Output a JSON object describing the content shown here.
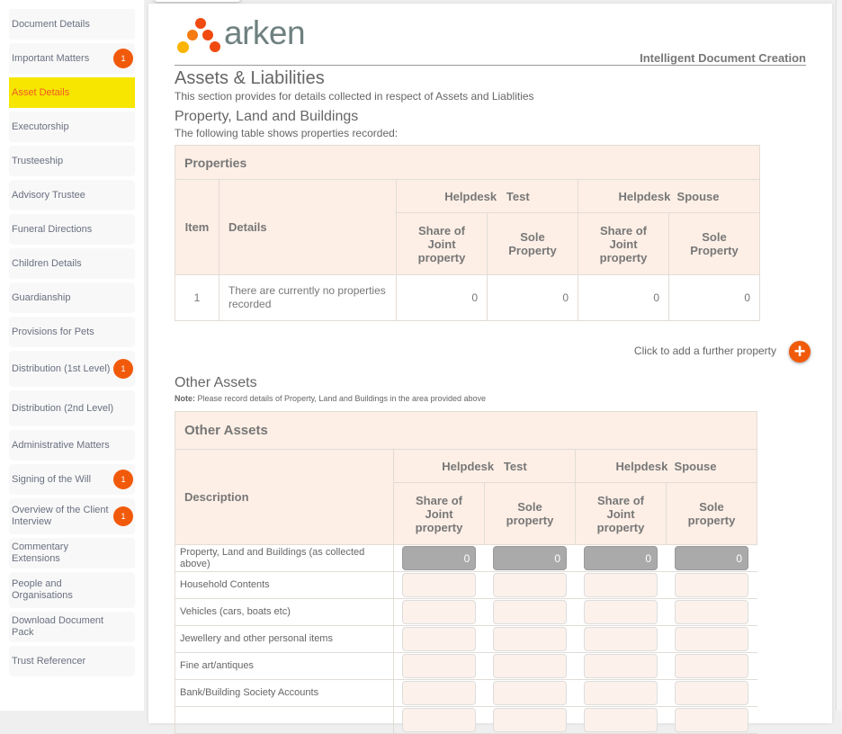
{
  "sidebar": {
    "items": [
      {
        "label": "Document Details"
      },
      {
        "label": "Important Matters",
        "badge": "1"
      },
      {
        "label": "Asset Details",
        "active": true
      },
      {
        "label": "Executorship"
      },
      {
        "label": "Trusteeship"
      },
      {
        "label": "Advisory Trustee"
      },
      {
        "label": "Funeral Directions"
      },
      {
        "label": "Children Details"
      },
      {
        "label": "Guardianship"
      },
      {
        "label": "Provisions for Pets"
      },
      {
        "label": "Distribution (1st Level)",
        "badge": "1"
      },
      {
        "label": "Distribution (2nd Level)"
      },
      {
        "label": "Administrative Matters"
      },
      {
        "label": "Signing of the Will",
        "badge": "1"
      },
      {
        "label": "Overview of the Client Interview",
        "badge": "1"
      },
      {
        "label": "Commentary Extensions"
      },
      {
        "label": "People and Organisations"
      },
      {
        "label": "Download Document Pack"
      },
      {
        "label": "Trust Referencer"
      }
    ]
  },
  "header": {
    "logo_text": "arken",
    "tagline": "Intelligent Document Creation"
  },
  "page": {
    "title": "Assets & Liabilities",
    "subtitle": "This section provides for details collected in respect of Assets and Liablities"
  },
  "properties": {
    "heading": "Property, Land and Buildings",
    "intro": "The following table shows properties recorded:",
    "table_title": "Properties",
    "col_item": "Item",
    "col_details": "Details",
    "person1": "Helpdesk   Test",
    "person2": "Helpdesk  Spouse",
    "col_joint": "Share of Joint property",
    "col_sole": "Sole Property",
    "rows": [
      {
        "item": "1",
        "details": "There are currently no properties recorded",
        "v1": "0",
        "v2": "0",
        "v3": "0",
        "v4": "0"
      }
    ],
    "add_label": "Click to add a further property"
  },
  "other": {
    "heading": "Other Assets",
    "note_label": "Note:",
    "note": " Please record details of Property, Land and Buildings in the area provided above",
    "table_title": "Other Assets",
    "col_desc": "Description",
    "person1": "Helpdesk   Test",
    "person2": "Helpdesk  Spouse",
    "col_joint": "Share of Joint property",
    "col_sole": "Sole property",
    "rows": [
      {
        "label": "Property, Land and Buildings (as collected above)",
        "values": [
          "0",
          "0",
          "0",
          "0"
        ],
        "readonly": true
      },
      {
        "label": "Household Contents",
        "values": [
          "",
          "",
          "",
          ""
        ]
      },
      {
        "label": "Vehicles (cars, boats etc)",
        "values": [
          "",
          "",
          "",
          ""
        ]
      },
      {
        "label": "Jewellery and other personal items",
        "values": [
          "",
          "",
          "",
          ""
        ]
      },
      {
        "label": "Fine art/antiques",
        "values": [
          "",
          "",
          "",
          ""
        ]
      },
      {
        "label": "Bank/Building Society Accounts",
        "values": [
          "",
          "",
          "",
          ""
        ]
      },
      {
        "label": "",
        "values": [
          "",
          "",
          "",
          ""
        ]
      }
    ]
  },
  "colors": {
    "accent": "#f15a0a",
    "active_bg": "#f7e600",
    "header_bg": "#fdefe6"
  }
}
